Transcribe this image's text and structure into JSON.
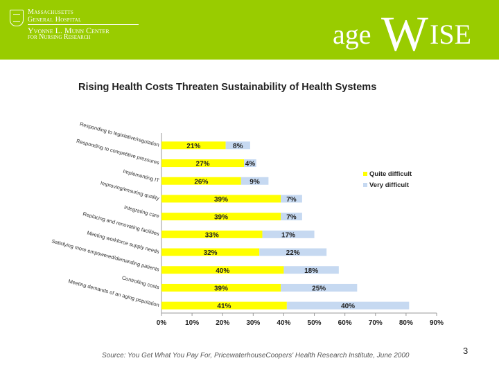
{
  "header": {
    "mgh_line1": "Massachusetts",
    "mgh_line2": "General Hospital",
    "munn_line1": "Yvonne L. Munn Center",
    "munn_line2": "for Nursing Research",
    "logo_part1": "age",
    "logo_part2": "W",
    "logo_part3": "ISE",
    "banner_color": "#99cc00"
  },
  "chart_data": {
    "type": "bar",
    "stacked": true,
    "orientation": "horizontal",
    "title": "Rising Health Costs Threaten Sustainability of Health Systems",
    "categories": [
      "Responding to legislative/regulation",
      "Responding to competitive pressures",
      "Implementing IT",
      "Improving/ensuring quality",
      "Integrating care",
      "Replacing and renovating facilities",
      "Meeting workforce supply needs",
      "Satisfying more empowered/demanding patients",
      "Controlling costs",
      "Meeting demands of an aging population"
    ],
    "series": [
      {
        "name": "Quite difficult",
        "color": "#ffff00",
        "values": [
          21,
          27,
          26,
          39,
          39,
          33,
          32,
          40,
          39,
          41
        ]
      },
      {
        "name": "Very difficult",
        "color": "#c6d9f1",
        "values": [
          8,
          4,
          9,
          7,
          7,
          17,
          22,
          18,
          25,
          40
        ]
      }
    ],
    "value_labels": {
      "quite": [
        "21%",
        "27%",
        "26%",
        "39%",
        "39%",
        "33%",
        "32%",
        "40%",
        "39%",
        "41%"
      ],
      "very": [
        "8%",
        "4%",
        "9%",
        "7%",
        "7%",
        "17%",
        "22%",
        "18%",
        "25%",
        "40%"
      ]
    },
    "xlim": [
      0,
      90
    ],
    "xticks": [
      "0%",
      "10%",
      "20%",
      "30%",
      "40%",
      "50%",
      "60%",
      "70%",
      "80%",
      "90%"
    ],
    "legend_position": "right",
    "grid": false
  },
  "source": "Source: You Get What You Pay For, PricewaterhouseCoopers' Health Research Institute, June 2000",
  "page_number": "3"
}
